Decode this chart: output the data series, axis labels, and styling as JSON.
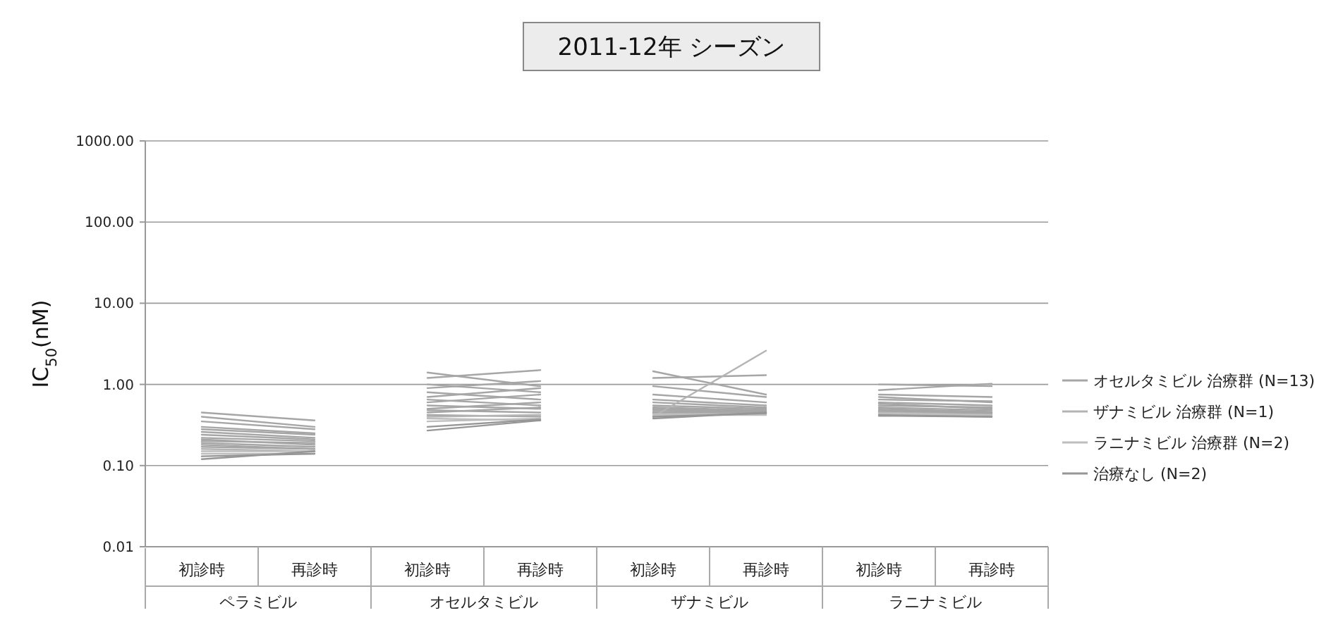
{
  "chart_data": {
    "type": "line",
    "title": "2011-12年 シーズン",
    "ylabel": "IC$_{50}$(nM)",
    "log": "y",
    "grid": "y",
    "legend": "right",
    "categories": [
      "初診時",
      "再診時",
      "初診時",
      "再診時",
      "初診時",
      "再診時",
      "初診時",
      "再診時"
    ],
    "annotations": [
      "ペラミビル",
      "オセルタミビル",
      "ザナミビル",
      "ラニナミビル"
    ],
    "ylim": [
      0.01,
      1000
    ],
    "yticks": [
      {
        "value": 0.01,
        "label": "0.01"
      },
      {
        "value": 0.1,
        "label": "0.10"
      },
      {
        "value": 1,
        "label": "1.00"
      },
      {
        "value": 10,
        "label": "10.00"
      },
      {
        "value": 100,
        "label": "100.00"
      },
      {
        "value": 1000,
        "label": "1000.00"
      }
    ],
    "series": [
      {
        "name": "オセルタミビル 治療群 (N=13)",
        "color": "#a6a6a6",
        "values": [
          0.45,
          0.36,
          1.4,
          0.95,
          1.45,
          0.75,
          1.0,
          0.95
        ]
      },
      {
        "color": "#a6a6a6",
        "values": [
          0.4,
          0.3,
          1.2,
          1.5,
          1.2,
          1.3,
          0.85,
          1.02
        ]
      },
      {
        "color": "#a6a6a6",
        "values": [
          0.35,
          0.28,
          1.0,
          0.8,
          0.95,
          0.7,
          0.75,
          0.7
        ]
      },
      {
        "color": "#a6a6a6",
        "values": [
          0.3,
          0.25,
          0.9,
          1.1,
          0.65,
          0.55,
          0.7,
          0.6
        ]
      },
      {
        "color": "#a6a6a6",
        "values": [
          0.28,
          0.24,
          0.8,
          0.65,
          0.75,
          0.6,
          0.65,
          0.62
        ]
      },
      {
        "color": "#a6a6a6",
        "values": [
          0.26,
          0.22,
          0.7,
          0.9,
          0.6,
          0.52,
          0.6,
          0.55
        ]
      },
      {
        "color": "#a6a6a6",
        "values": [
          0.24,
          0.21,
          0.65,
          0.55,
          0.55,
          0.5,
          0.58,
          0.5
        ]
      },
      {
        "color": "#a6a6a6",
        "values": [
          0.22,
          0.2,
          0.6,
          0.75,
          0.52,
          0.48,
          0.55,
          0.52
        ]
      },
      {
        "color": "#a6a6a6",
        "values": [
          0.21,
          0.18,
          0.55,
          0.5,
          0.5,
          0.47,
          0.52,
          0.48
        ]
      },
      {
        "color": "#a6a6a6",
        "values": [
          0.2,
          0.19,
          0.5,
          0.6,
          0.48,
          0.46,
          0.5,
          0.46
        ]
      },
      {
        "color": "#a6a6a6",
        "values": [
          0.19,
          0.17,
          0.48,
          0.45,
          0.46,
          0.45,
          0.48,
          0.45
        ]
      },
      {
        "color": "#a6a6a6",
        "values": [
          0.18,
          0.16,
          0.45,
          0.52,
          0.45,
          0.44,
          0.47,
          0.44
        ]
      },
      {
        "color": "#a6a6a6",
        "values": [
          0.17,
          0.16,
          0.42,
          0.4,
          0.44,
          0.44,
          0.46,
          0.43
        ]
      },
      {
        "name": "ザナミビル 治療群 (N=1)",
        "color": "#b4b4b4",
        "values": [
          0.16,
          0.15,
          0.4,
          0.42,
          0.4,
          2.6,
          0.45,
          0.42
        ]
      },
      {
        "name": "ラニナミビル 治療群 (N=2)",
        "color": "#bebebe",
        "values": [
          0.15,
          0.15,
          0.38,
          0.36,
          0.43,
          0.43,
          0.44,
          0.42
        ]
      },
      {
        "color": "#bebebe",
        "values": [
          0.14,
          0.14,
          0.35,
          0.38,
          0.42,
          0.42,
          0.43,
          0.41
        ]
      },
      {
        "name": "治療なし (N=2)",
        "color": "#969696",
        "values": [
          0.13,
          0.14,
          0.3,
          0.37,
          0.4,
          0.44,
          0.42,
          0.4
        ]
      },
      {
        "color": "#969696",
        "values": [
          0.12,
          0.15,
          0.27,
          0.36,
          0.38,
          0.45,
          0.41,
          0.4
        ]
      }
    ]
  }
}
